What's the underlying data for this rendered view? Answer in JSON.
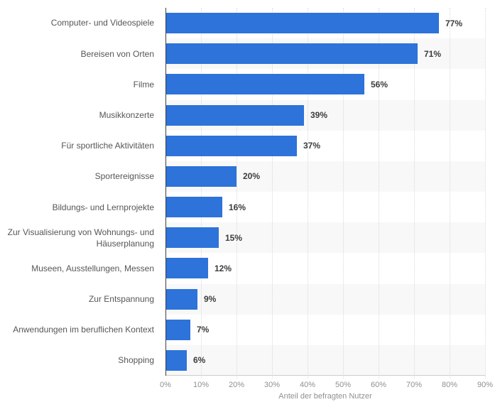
{
  "chart_data": {
    "type": "bar",
    "orientation": "horizontal",
    "title": "",
    "xlabel": "Anteil der befragten Nutzer",
    "ylabel": "",
    "xlim": [
      0,
      90
    ],
    "xtick_step": 10,
    "xticks": [
      "0%",
      "10%",
      "20%",
      "30%",
      "40%",
      "50%",
      "60%",
      "70%",
      "80%",
      "90%"
    ],
    "grid": "vertical-dotted",
    "legend": "none",
    "categories": [
      "Computer- und Videospiele",
      "Bereisen von Orten",
      "Filme",
      "Musikkonzerte",
      "Für sportliche Aktivitäten",
      "Sportereignisse",
      "Bildungs- und Lernprojekte",
      "Zur Visualisierung von Wohnungs- und Häuserplanung",
      "Museen, Ausstellungen, Messen",
      "Zur Entspannung",
      "Anwendungen im beruflichen Kontext",
      "Shopping"
    ],
    "values": [
      77,
      71,
      56,
      39,
      37,
      20,
      16,
      15,
      12,
      9,
      7,
      6
    ],
    "value_labels": [
      "77%",
      "71%",
      "56%",
      "39%",
      "37%",
      "20%",
      "16%",
      "15%",
      "12%",
      "9%",
      "7%",
      "6%"
    ],
    "colors": {
      "bar": "#2d73d9",
      "band_even": "#ffffff",
      "band_odd": "#f8f8f8",
      "gridline": "#d9d9d9",
      "y_axis_line": "#3f3f3f",
      "x_axis_line": "#cccccc",
      "tick_text": "#909090",
      "category_text": "#565656",
      "value_text": "#3c3c3c"
    }
  }
}
